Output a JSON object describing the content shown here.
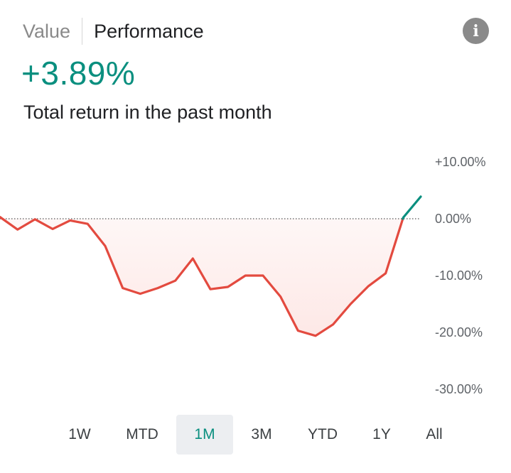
{
  "tabs": {
    "value_label": "Value",
    "performance_label": "Performance"
  },
  "info_icon": "info-icon",
  "summary": {
    "return_value": "+3.89%",
    "description": "Total return in the past month"
  },
  "colors": {
    "positive": "#0a8f7f",
    "negative": "#e34a3f",
    "area_fill": "#fde8e6",
    "baseline": "#555555"
  },
  "ranges": {
    "selected": "1M",
    "items": [
      {
        "label": "1W"
      },
      {
        "label": "MTD"
      },
      {
        "label": "1M"
      },
      {
        "label": "3M"
      },
      {
        "label": "YTD"
      },
      {
        "label": "1Y"
      },
      {
        "label": "All"
      }
    ]
  },
  "chart_data": {
    "type": "line",
    "ylim": [
      -30,
      10
    ],
    "y_ticks": [
      10,
      0,
      -10,
      -20,
      -30
    ],
    "y_tick_labels": [
      "+10.00%",
      "0.00%",
      "-10.00%",
      "-20.00%",
      "-30.00%"
    ],
    "baseline": 0,
    "series": [
      {
        "values": [
          0.3,
          -1.9,
          -0.1,
          -1.8,
          -0.3,
          -0.9,
          -4.8,
          -12.2,
          -13.2,
          -12.2,
          -10.9,
          -7.0,
          -12.4,
          -12.0,
          -10.0,
          -10.0,
          -13.7,
          -19.7,
          -20.6,
          -18.6,
          -15.0,
          -11.9,
          -9.6,
          0.2,
          3.89
        ]
      }
    ]
  }
}
